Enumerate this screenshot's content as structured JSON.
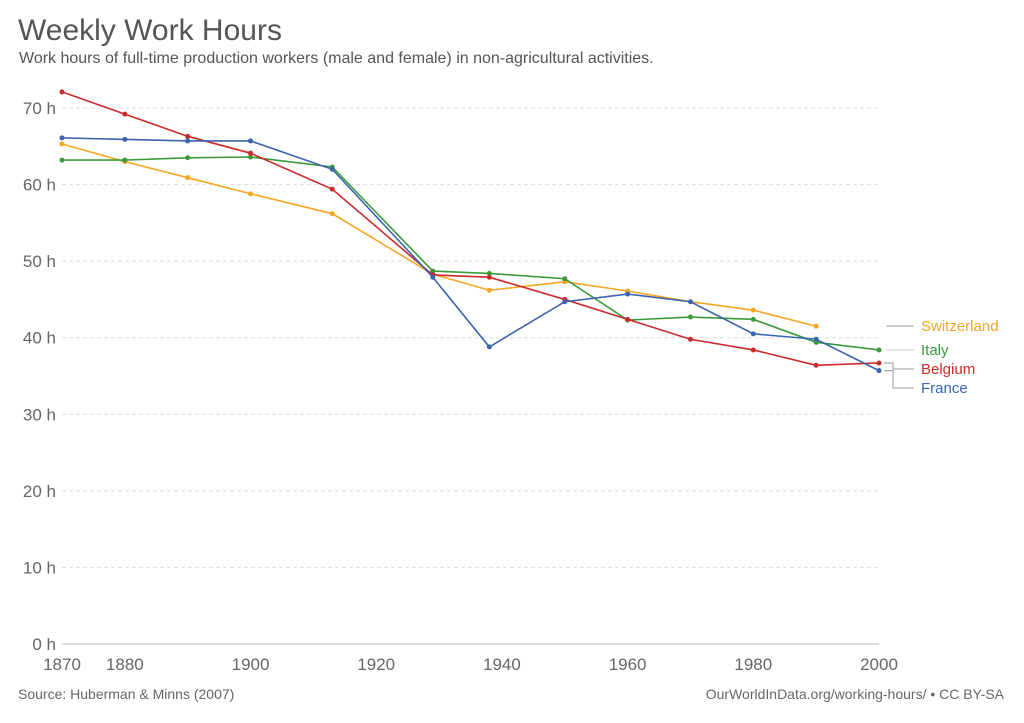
{
  "title": "Weekly Work Hours",
  "subtitle": "Work hours of full-time production workers (male and female) in non-agricultural activities.",
  "source": "Source: Huberman & Minns (2007)",
  "license": "OurWorldInData.org/working-hours/ • CC BY-SA",
  "chart_data": {
    "type": "line",
    "title": "Weekly Work Hours",
    "xlim": [
      1870,
      2000
    ],
    "ylim": [
      0,
      70
    ],
    "x_ticks": [
      "1870",
      "1880",
      "1900",
      "1920",
      "1940",
      "1960",
      "1980",
      "2000"
    ],
    "y_ticks": [
      "0 h",
      "10 h",
      "20 h",
      "30 h",
      "40 h",
      "50 h",
      "60 h",
      "70 h"
    ],
    "grid": "horizontal dashed",
    "legend": "right, line-end labels",
    "x": [
      1870,
      1880,
      1890,
      1900,
      1913,
      1929,
      1938,
      1950,
      1960,
      1970,
      1980,
      1990,
      2000
    ],
    "series": [
      {
        "name": "Switzerland",
        "color": "#f5a623",
        "values": [
          65.3,
          63.0,
          60.9,
          58.8,
          56.2,
          48.3,
          46.2,
          47.3,
          46.1,
          44.7,
          43.6,
          41.5,
          null
        ]
      },
      {
        "name": "Italy",
        "color": "#3a9a3a",
        "values": [
          63.2,
          63.2,
          63.5,
          63.6,
          62.3,
          48.7,
          48.4,
          47.7,
          42.3,
          42.7,
          42.4,
          39.4,
          38.4
        ]
      },
      {
        "name": "Belgium",
        "color": "#cc2a2a",
        "values": [
          72.1,
          69.2,
          66.3,
          64.1,
          59.4,
          48.2,
          47.9,
          45.0,
          42.4,
          39.8,
          38.4,
          36.4,
          36.7
        ]
      },
      {
        "name": "France",
        "color": "#3a64ae",
        "values": [
          66.1,
          65.9,
          65.7,
          65.7,
          62.0,
          47.9,
          38.8,
          44.7,
          45.7,
          44.7,
          40.5,
          39.8,
          35.7
        ]
      }
    ]
  }
}
